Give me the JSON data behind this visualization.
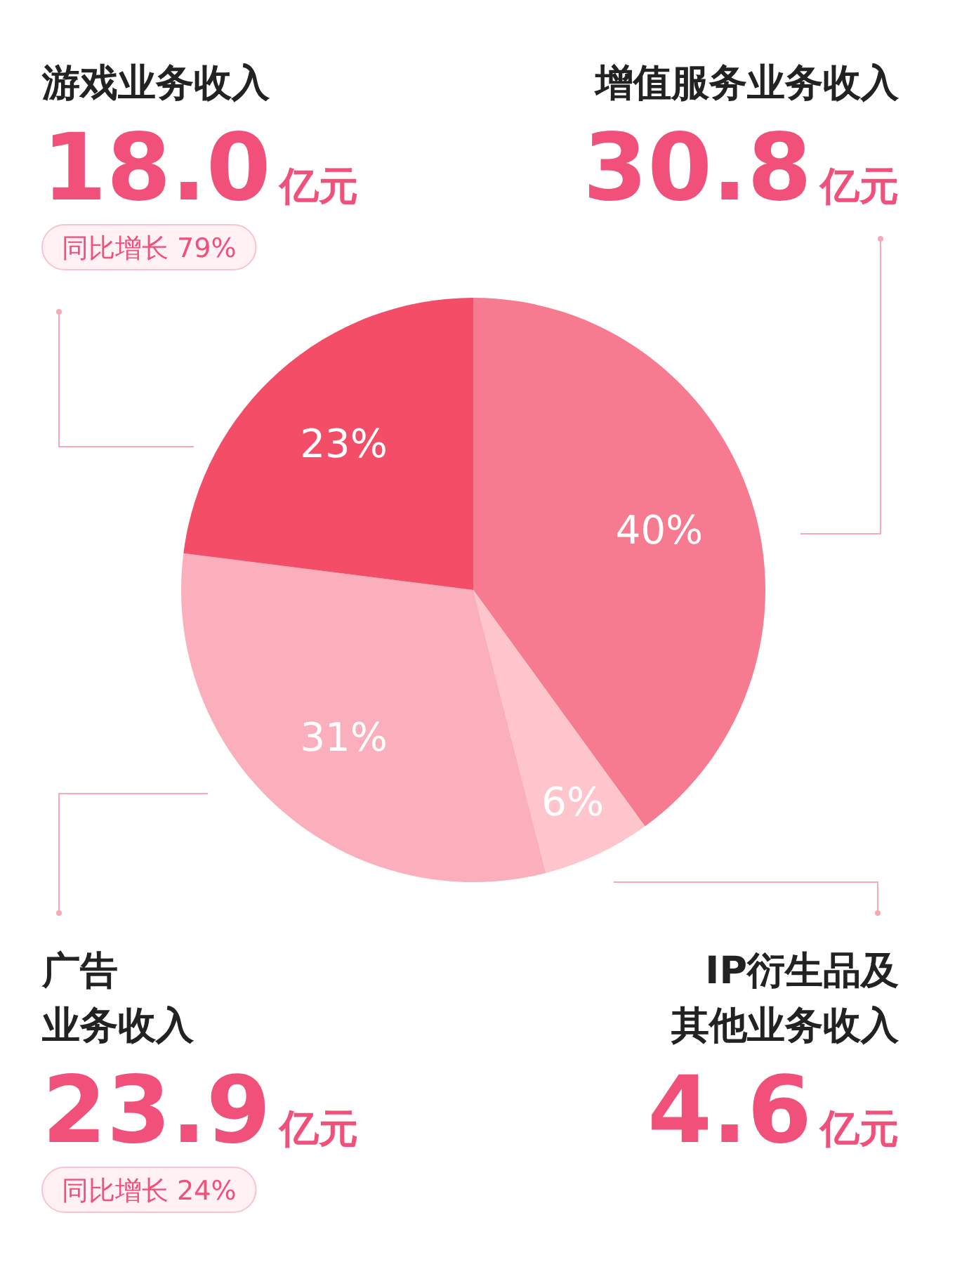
{
  "chart_data": {
    "type": "pie",
    "categories": [
      "增值服务业务收入",
      "IP衍生品及其他业务收入",
      "广告业务收入",
      "游戏业务收入"
    ],
    "values": [
      40,
      6,
      31,
      23
    ],
    "value_labels": [
      "40%",
      "6%",
      "31%",
      "23%"
    ],
    "colors": [
      "#f77b90",
      "#ffc5cd",
      "#fbaebb",
      "#f44d68"
    ],
    "annotations": [
      "30.8亿元",
      "4.6亿元",
      "23.9亿元",
      "同比增长 24%",
      "18.0亿元",
      "同比增长 79%"
    ]
  }
}
